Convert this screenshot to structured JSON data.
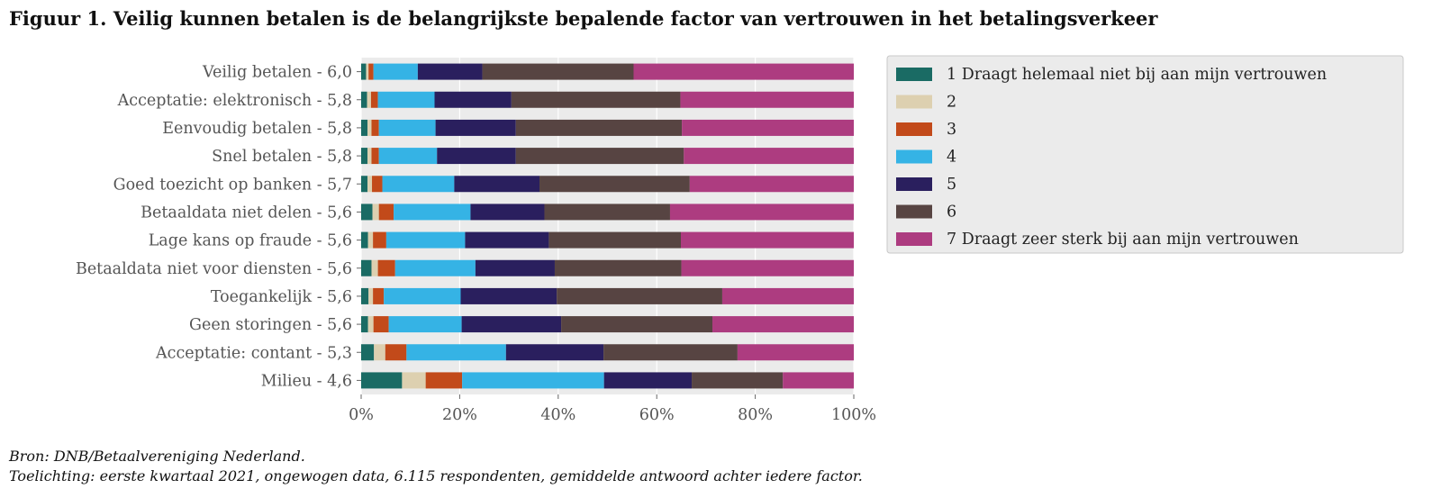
{
  "title": "Figuur 1. Veilig kunnen betalen is de belangrijkste bepalende factor van vertrouwen in het betalingsverkeer",
  "source": "Bron: DNB/Betaalvereniging Nederland.",
  "note": "Toelichting: eerste kwartaal 2021, ongewogen data, 6.115 respondenten, gemiddelde antwoord achter iedere factor.",
  "chart_data": {
    "type": "bar",
    "orientation": "horizontal",
    "stacked": true,
    "categories": [
      "Veilig betalen - 6,0",
      "Acceptatie: elektronisch - 5,8",
      "Eenvoudig betalen - 5,8",
      "Snel betalen - 5,8",
      "Goed toezicht op banken - 5,7",
      "Betaaldata niet delen - 5,6",
      "Lage kans op fraude - 5,6",
      "Betaaldata niet voor diensten - 5,6",
      "Toegankelijk - 5,6",
      "Geen storingen - 5,6",
      "Acceptatie: contant - 5,3",
      "Milieu - 4,6"
    ],
    "series": [
      {
        "name": "1 Draagt helemaal niet bij aan mijn vertrouwen",
        "color": "#1a6b64",
        "values": [
          1.0,
          1.2,
          1.3,
          1.3,
          1.3,
          2.3,
          1.4,
          2.1,
          1.5,
          1.4,
          2.6,
          8.3
        ]
      },
      {
        "name": "2",
        "color": "#ddd0b0",
        "values": [
          0.5,
          0.8,
          0.8,
          0.8,
          0.9,
          1.3,
          1.0,
          1.3,
          0.9,
          1.1,
          2.3,
          4.8
        ]
      },
      {
        "name": "3",
        "color": "#c24a1a",
        "values": [
          1.0,
          1.4,
          1.5,
          1.5,
          2.1,
          3.0,
          2.7,
          3.5,
          2.2,
          3.1,
          4.3,
          7.4
        ]
      },
      {
        "name": "4",
        "color": "#35b3e5",
        "values": [
          9.0,
          11.5,
          11.5,
          11.8,
          14.6,
          15.6,
          16.0,
          16.3,
          15.6,
          14.8,
          20.2,
          28.8
        ]
      },
      {
        "name": "5",
        "color": "#2a1f5e",
        "values": [
          13.1,
          15.6,
          16.3,
          16.0,
          17.3,
          15.0,
          17.0,
          16.1,
          19.5,
          20.2,
          19.8,
          17.8
        ]
      },
      {
        "name": "6",
        "color": "#574442",
        "values": [
          30.7,
          34.3,
          33.7,
          34.1,
          30.5,
          25.5,
          26.8,
          25.7,
          33.6,
          30.7,
          27.2,
          18.5
        ]
      },
      {
        "name": "7 Draagt zeer sterk bij aan mijn vertrouwen",
        "color": "#ad3c80",
        "values": [
          44.7,
          35.2,
          34.9,
          34.5,
          33.3,
          37.3,
          35.1,
          35.0,
          26.7,
          28.7,
          23.6,
          14.4
        ]
      }
    ],
    "xlim": [
      0,
      100
    ],
    "xticks": [
      "0%",
      "20%",
      "40%",
      "60%",
      "80%",
      "100%"
    ],
    "xlabel": "",
    "ylabel": "",
    "legend_position": "right"
  }
}
